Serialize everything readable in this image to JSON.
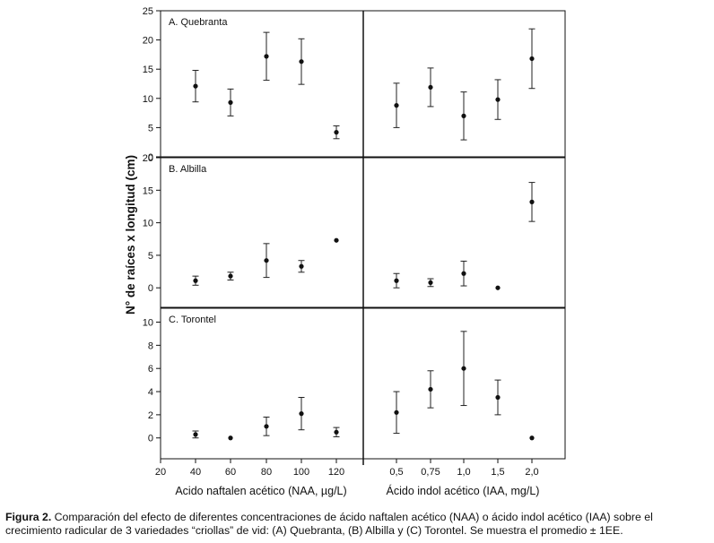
{
  "chart_data": {
    "type": "scatter",
    "ylabel": "N° de raíces x longitud (cm)",
    "left_xlabel": "Acido naftalen acético (NAA, µg/L)",
    "right_xlabel": "Ácido indol acético (IAA, mg/L)",
    "left_x_ticks": [
      "20",
      "40",
      "60",
      "80",
      "100",
      "120"
    ],
    "right_x_ticks": [
      "0,5",
      "0,75",
      "1,0",
      "1,5",
      "2,0"
    ],
    "panels": [
      {
        "title": "A. Quebranta",
        "y_ticks": [
          "0",
          "5",
          "10",
          "15",
          "20",
          "25"
        ],
        "ylim": [
          0,
          25
        ],
        "naa": [
          {
            "x": "40",
            "y": 12.1,
            "err": 2.7
          },
          {
            "x": "60",
            "y": 9.3,
            "err": 2.3
          },
          {
            "x": "80",
            "y": 17.2,
            "err": 4.1
          },
          {
            "x": "100",
            "y": 16.3,
            "err": 3.9
          },
          {
            "x": "120",
            "y": 4.2,
            "err": 1.1
          }
        ],
        "iaa": [
          {
            "x": "0,5",
            "y": 8.8,
            "err": 3.8
          },
          {
            "x": "0,75",
            "y": 11.9,
            "err": 3.3
          },
          {
            "x": "1,0",
            "y": 7.0,
            "err": 4.1
          },
          {
            "x": "1,5",
            "y": 9.8,
            "err": 3.4
          },
          {
            "x": "2,0",
            "y": 16.8,
            "err": 5.1
          }
        ]
      },
      {
        "title": "B. Albilla",
        "y_ticks": [
          "0",
          "5",
          "10",
          "15",
          "20"
        ],
        "ylim": [
          -3,
          20
        ],
        "naa": [
          {
            "x": "40",
            "y": 1.1,
            "err": 0.7
          },
          {
            "x": "60",
            "y": 1.8,
            "err": 0.6
          },
          {
            "x": "80",
            "y": 4.2,
            "err": 2.6
          },
          {
            "x": "100",
            "y": 3.3,
            "err": 0.9
          },
          {
            "x": "120",
            "y": 7.3,
            "err": 0
          }
        ],
        "iaa": [
          {
            "x": "0,5",
            "y": 1.1,
            "err": 1.1
          },
          {
            "x": "0,75",
            "y": 0.8,
            "err": 0.6
          },
          {
            "x": "1,0",
            "y": 2.2,
            "err": 1.9
          },
          {
            "x": "1,5",
            "y": 0.0,
            "err": 0
          },
          {
            "x": "2,0",
            "y": 13.2,
            "err": 3.0
          }
        ]
      },
      {
        "title": "C. Torontel",
        "y_ticks": [
          "0",
          "2",
          "4",
          "6",
          "8",
          "10"
        ],
        "ylim": [
          -1.8,
          11.2
        ],
        "naa": [
          {
            "x": "40",
            "y": 0.3,
            "err": 0.3
          },
          {
            "x": "60",
            "y": 0.0,
            "err": 0
          },
          {
            "x": "80",
            "y": 1.0,
            "err": 0.8
          },
          {
            "x": "100",
            "y": 2.1,
            "err": 1.4
          },
          {
            "x": "120",
            "y": 0.5,
            "err": 0.4
          }
        ],
        "iaa": [
          {
            "x": "0,5",
            "y": 2.2,
            "err": 1.8
          },
          {
            "x": "0,75",
            "y": 4.2,
            "err": 1.6
          },
          {
            "x": "1,0",
            "y": 6.0,
            "err": 3.2
          },
          {
            "x": "1,5",
            "y": 3.5,
            "err": 1.5
          },
          {
            "x": "2,0",
            "y": 0.0,
            "err": 0
          }
        ]
      }
    ]
  },
  "caption": {
    "label": "Figura 2.",
    "text": " Comparación del efecto de diferentes concentraciones de ácido naftalen acético (NAA) o ácido indol acético (IAA) sobre el crecimiento radicular de 3 variedades “criollas” de vid: (A) Quebranta, (B) Albilla y (C) Torontel. Se muestra el promedio ± 1EE."
  }
}
